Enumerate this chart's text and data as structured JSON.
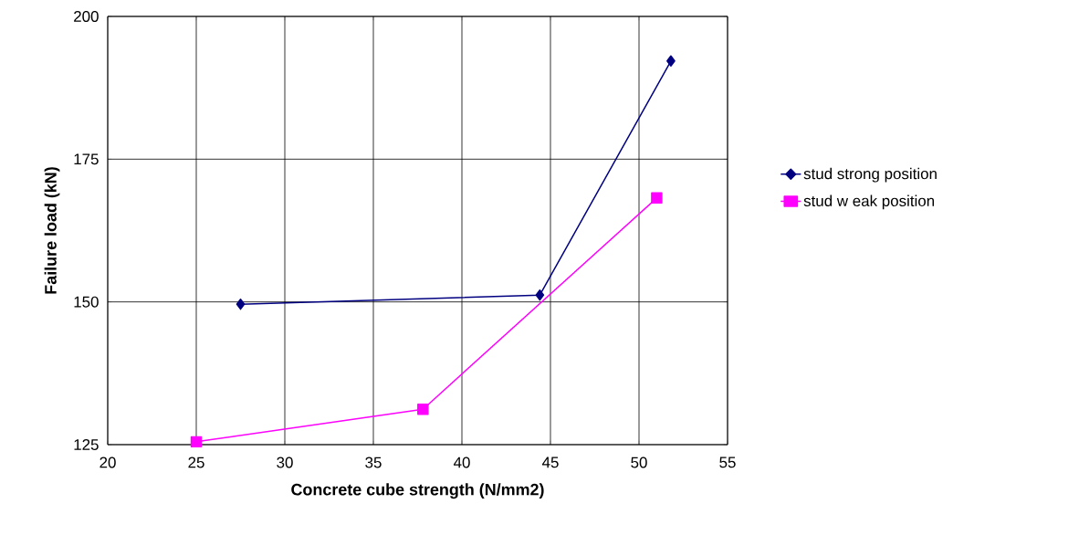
{
  "chart_data": {
    "type": "line",
    "xlabel": "Concrete cube strength (N/mm2)",
    "ylabel": "Failure load (kN)",
    "xlim": [
      20,
      55
    ],
    "xticks": [
      20,
      25,
      30,
      35,
      40,
      45,
      50,
      55
    ],
    "ylim": [
      125,
      200
    ],
    "yticks": [
      125,
      150,
      175,
      200
    ],
    "grid": true,
    "legend": "right",
    "line_style": "solid",
    "series": [
      {
        "name": "stud strong position",
        "color": "#000080",
        "marker": "diamond",
        "x": [
          27.5,
          44.4,
          51.8
        ],
        "values": [
          149.6,
          151.2,
          192.2
        ]
      },
      {
        "name": "stud w eak position",
        "color": "#ff00ff",
        "marker": "square",
        "x": [
          25,
          37.8,
          51.0
        ],
        "values": [
          125.5,
          131.2,
          168.2
        ]
      }
    ]
  }
}
